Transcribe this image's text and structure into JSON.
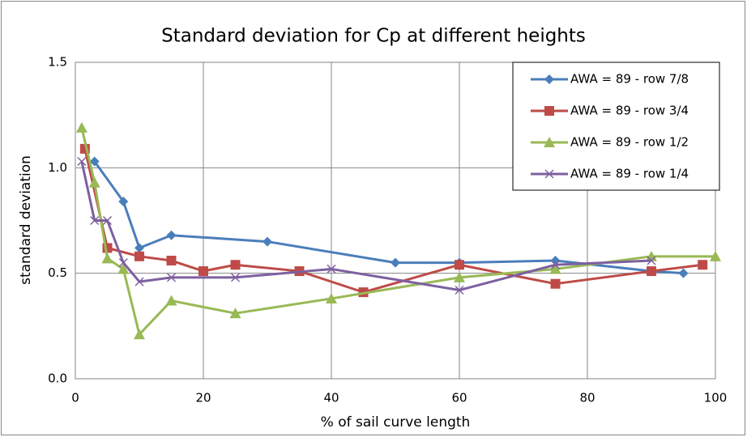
{
  "chart_data": {
    "type": "line",
    "title": "Standard deviation for Cp at different heights",
    "x_label": "% of sail curve length",
    "y_label": "standard deviation",
    "xlim": [
      0,
      100
    ],
    "xticks": [
      0,
      20,
      40,
      60,
      80,
      100
    ],
    "ylim": [
      0,
      1.5
    ],
    "yticks": [
      {
        "value": 0,
        "label": "0.0"
      },
      {
        "value": 0.5,
        "label": "0.5"
      },
      {
        "value": 1,
        "label": "1.0"
      },
      {
        "value": 1.5,
        "label": "1.5"
      }
    ],
    "grid": true,
    "legend": "top-right",
    "series": [
      {
        "name": "AWA = 89 - row 7/8",
        "color": "#4a7ebb",
        "marker": "diamond",
        "x": [
          3,
          7.5,
          10,
          15,
          30,
          50,
          60,
          75,
          90,
          95
        ],
        "values": [
          1.03,
          0.84,
          0.62,
          0.68,
          0.65,
          0.55,
          0.55,
          0.56,
          0.51,
          0.5
        ]
      },
      {
        "name": "AWA = 89 - row 3/4",
        "color": "#be4b48",
        "marker": "square",
        "x": [
          1.5,
          5,
          10,
          15,
          20,
          25,
          35,
          45,
          60,
          75,
          90,
          98
        ],
        "values": [
          1.09,
          0.62,
          0.58,
          0.56,
          0.51,
          0.54,
          0.51,
          0.41,
          0.54,
          0.45,
          0.51,
          0.54
        ]
      },
      {
        "name": "AWA = 89 - row 1/2",
        "color": "#98b954",
        "marker": "triangle",
        "x": [
          1,
          3,
          5,
          7.5,
          10,
          15,
          25,
          40,
          60,
          75,
          90,
          100
        ],
        "values": [
          1.19,
          0.93,
          0.57,
          0.52,
          0.21,
          0.37,
          0.31,
          0.38,
          0.48,
          0.52,
          0.58,
          0.58
        ]
      },
      {
        "name": "AWA = 89 - row 1/4",
        "color": "#7d60a0",
        "marker": "x",
        "x": [
          1,
          3,
          5,
          7.5,
          10,
          15,
          25,
          40,
          60,
          75,
          90
        ],
        "values": [
          1.03,
          0.75,
          0.75,
          0.55,
          0.46,
          0.48,
          0.48,
          0.52,
          0.42,
          0.54,
          0.56
        ]
      }
    ]
  }
}
